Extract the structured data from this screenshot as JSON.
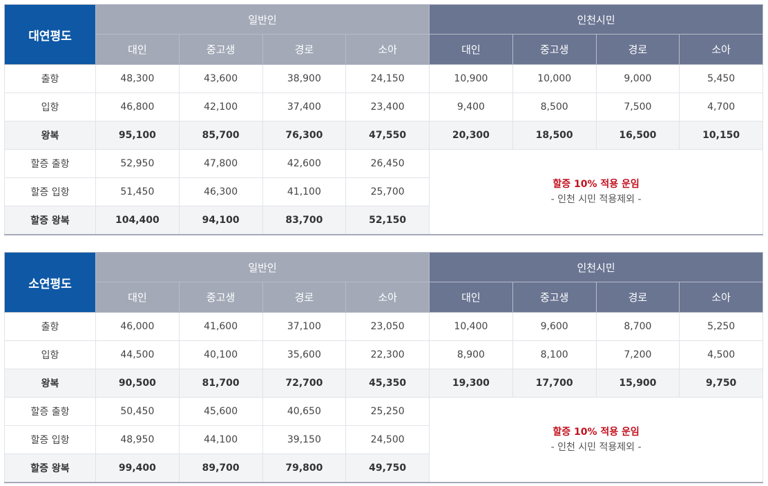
{
  "tables": [
    {
      "route": "대연평도",
      "groups": {
        "general": "일반인",
        "incheon": "인천시민"
      },
      "subheaders": [
        "대인",
        "중고생",
        "경로",
        "소아"
      ],
      "rows": [
        {
          "label": "출항",
          "general": [
            "48,300",
            "43,600",
            "38,900",
            "24,150"
          ],
          "incheon": [
            "10,900",
            "10,000",
            "9,000",
            "5,450"
          ]
        },
        {
          "label": "입항",
          "general": [
            "46,800",
            "42,100",
            "37,400",
            "23,400"
          ],
          "incheon": [
            "9,400",
            "8,500",
            "7,500",
            "4,700"
          ]
        },
        {
          "label": "왕복",
          "general": [
            "95,100",
            "85,700",
            "76,300",
            "47,550"
          ],
          "incheon": [
            "20,300",
            "18,500",
            "16,500",
            "10,150"
          ]
        },
        {
          "label": "할증 출항",
          "general": [
            "52,950",
            "47,800",
            "42,600",
            "26,450"
          ]
        },
        {
          "label": "할증 입항",
          "general": [
            "51,450",
            "46,300",
            "41,100",
            "25,700"
          ]
        },
        {
          "label": "할증 왕복",
          "general": [
            "104,400",
            "94,100",
            "83,700",
            "52,150"
          ]
        }
      ],
      "notice": {
        "main": "할증 10% 적용 운임",
        "sub": "- 인천 시민 적용제외 -"
      }
    },
    {
      "route": "소연평도",
      "groups": {
        "general": "일반인",
        "incheon": "인천시민"
      },
      "subheaders": [
        "대인",
        "중고생",
        "경로",
        "소아"
      ],
      "rows": [
        {
          "label": "출항",
          "general": [
            "46,000",
            "41,600",
            "37,100",
            "23,050"
          ],
          "incheon": [
            "10,400",
            "9,600",
            "8,700",
            "5,250"
          ]
        },
        {
          "label": "입항",
          "general": [
            "44,500",
            "40,100",
            "35,600",
            "22,300"
          ],
          "incheon": [
            "8,900",
            "8,100",
            "7,200",
            "4,500"
          ]
        },
        {
          "label": "왕복",
          "general": [
            "90,500",
            "81,700",
            "72,700",
            "45,350"
          ],
          "incheon": [
            "19,300",
            "17,700",
            "15,900",
            "9,750"
          ]
        },
        {
          "label": "할증 출항",
          "general": [
            "50,450",
            "45,600",
            "40,650",
            "25,250"
          ]
        },
        {
          "label": "할증 입항",
          "general": [
            "48,950",
            "44,100",
            "39,150",
            "24,500"
          ]
        },
        {
          "label": "할증 왕복",
          "general": [
            "99,400",
            "89,700",
            "79,800",
            "49,750"
          ]
        }
      ],
      "notice": {
        "main": "할증 10% 적용 운임",
        "sub": "- 인천 시민 적용제외 -"
      }
    }
  ],
  "colors": {
    "route_header": "#0e58a6",
    "general_header": "#a3a9b7",
    "incheon_header": "#6a7592",
    "notice_text": "#c1121f"
  }
}
